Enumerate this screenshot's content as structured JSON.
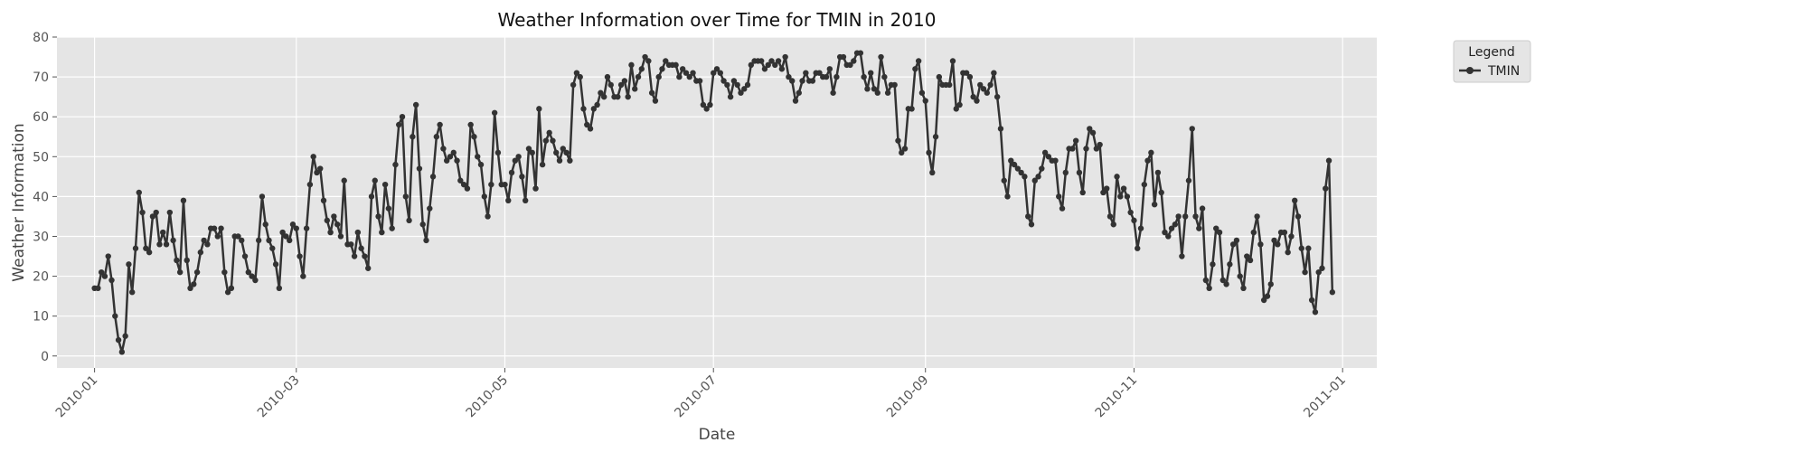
{
  "chart_data": {
    "type": "line",
    "title": "Weather Information over Time for TMIN in 2010",
    "xlabel": "Date",
    "ylabel": "Weather Information",
    "xlim": [
      "2009-12-21",
      "2011-01-11"
    ],
    "ylim": [
      -3,
      80
    ],
    "grid": true,
    "legend": {
      "title": "Legend",
      "placement": "outside-top-right"
    },
    "x_ticks": [
      "2010-01",
      "2010-03",
      "2010-05",
      "2010-07",
      "2010-09",
      "2010-11",
      "2011-01"
    ],
    "y_ticks": [
      0,
      10,
      20,
      30,
      40,
      50,
      60,
      70,
      80
    ],
    "colors": {
      "plot_bg": "#e5e5e5",
      "grid": "#ffffff",
      "series": "#333333"
    },
    "series": [
      {
        "name": "TMIN",
        "start": "2010-01-01",
        "step_days": 1,
        "values": [
          17,
          17,
          21,
          20,
          25,
          19,
          10,
          4,
          1,
          5,
          23,
          16,
          27,
          41,
          36,
          27,
          26,
          35,
          36,
          28,
          31,
          28,
          36,
          29,
          24,
          21,
          39,
          24,
          17,
          18,
          21,
          26,
          29,
          28,
          32,
          32,
          30,
          32,
          21,
          16,
          17,
          30,
          30,
          29,
          25,
          21,
          20,
          19,
          29,
          40,
          33,
          29,
          27,
          23,
          17,
          31,
          30,
          29,
          33,
          32,
          25,
          20,
          32,
          43,
          50,
          46,
          47,
          39,
          34,
          31,
          35,
          33,
          30,
          44,
          28,
          28,
          25,
          31,
          27,
          25,
          22,
          40,
          44,
          35,
          31,
          43,
          37,
          32,
          48,
          58,
          60,
          40,
          34,
          55,
          63,
          47,
          33,
          29,
          37,
          45,
          55,
          58,
          52,
          49,
          50,
          51,
          49,
          44,
          43,
          42,
          58,
          55,
          50,
          48,
          40,
          35,
          43,
          61,
          51,
          43,
          43,
          39,
          46,
          49,
          50,
          45,
          39,
          52,
          51,
          42,
          62,
          48,
          54,
          56,
          54,
          51,
          49,
          52,
          51,
          49,
          68,
          71,
          70,
          62,
          58,
          57,
          62,
          63,
          66,
          65,
          70,
          68,
          65,
          65,
          68,
          69,
          65,
          73,
          67,
          70,
          72,
          75,
          74,
          66,
          64,
          70,
          72,
          74,
          73,
          73,
          73,
          70,
          72,
          71,
          70,
          71,
          69,
          69,
          63,
          62,
          63,
          71,
          72,
          71,
          69,
          68,
          65,
          69,
          68,
          66,
          67,
          68,
          73,
          74,
          74,
          74,
          72,
          73,
          74,
          73,
          74,
          72,
          75,
          70,
          69,
          64,
          66,
          69,
          71,
          69,
          69,
          71,
          71,
          70,
          70,
          72,
          66,
          70,
          75,
          75,
          73,
          73,
          74,
          76,
          76,
          70,
          67,
          71,
          67,
          66,
          75,
          70,
          66,
          68,
          68,
          54,
          51,
          52,
          62,
          62,
          72,
          74,
          66,
          64,
          51,
          46,
          55,
          70,
          68,
          68,
          68,
          74,
          62,
          63,
          71,
          71,
          70,
          65,
          64,
          68,
          67,
          66,
          68,
          71,
          65,
          57,
          44,
          40,
          49,
          48,
          47,
          46,
          45,
          35,
          33,
          44,
          45,
          47,
          51,
          50,
          49,
          49,
          40,
          37,
          46,
          52,
          52,
          54,
          46,
          41,
          52,
          57,
          56,
          52,
          53,
          41,
          42,
          35,
          33,
          45,
          40,
          42,
          40,
          36,
          34,
          27,
          32,
          43,
          49,
          51,
          38,
          46,
          41,
          31,
          30,
          32,
          33,
          35,
          25,
          35,
          44,
          57,
          35,
          32,
          37,
          19,
          17,
          23,
          32,
          31,
          19,
          18,
          23,
          28,
          29,
          20,
          17,
          25,
          24,
          31,
          35,
          28,
          14,
          15,
          18,
          29,
          28,
          31,
          31,
          26,
          30,
          39,
          35,
          27,
          21,
          27,
          14,
          11,
          21,
          22,
          42,
          49,
          16
        ]
      }
    ]
  }
}
